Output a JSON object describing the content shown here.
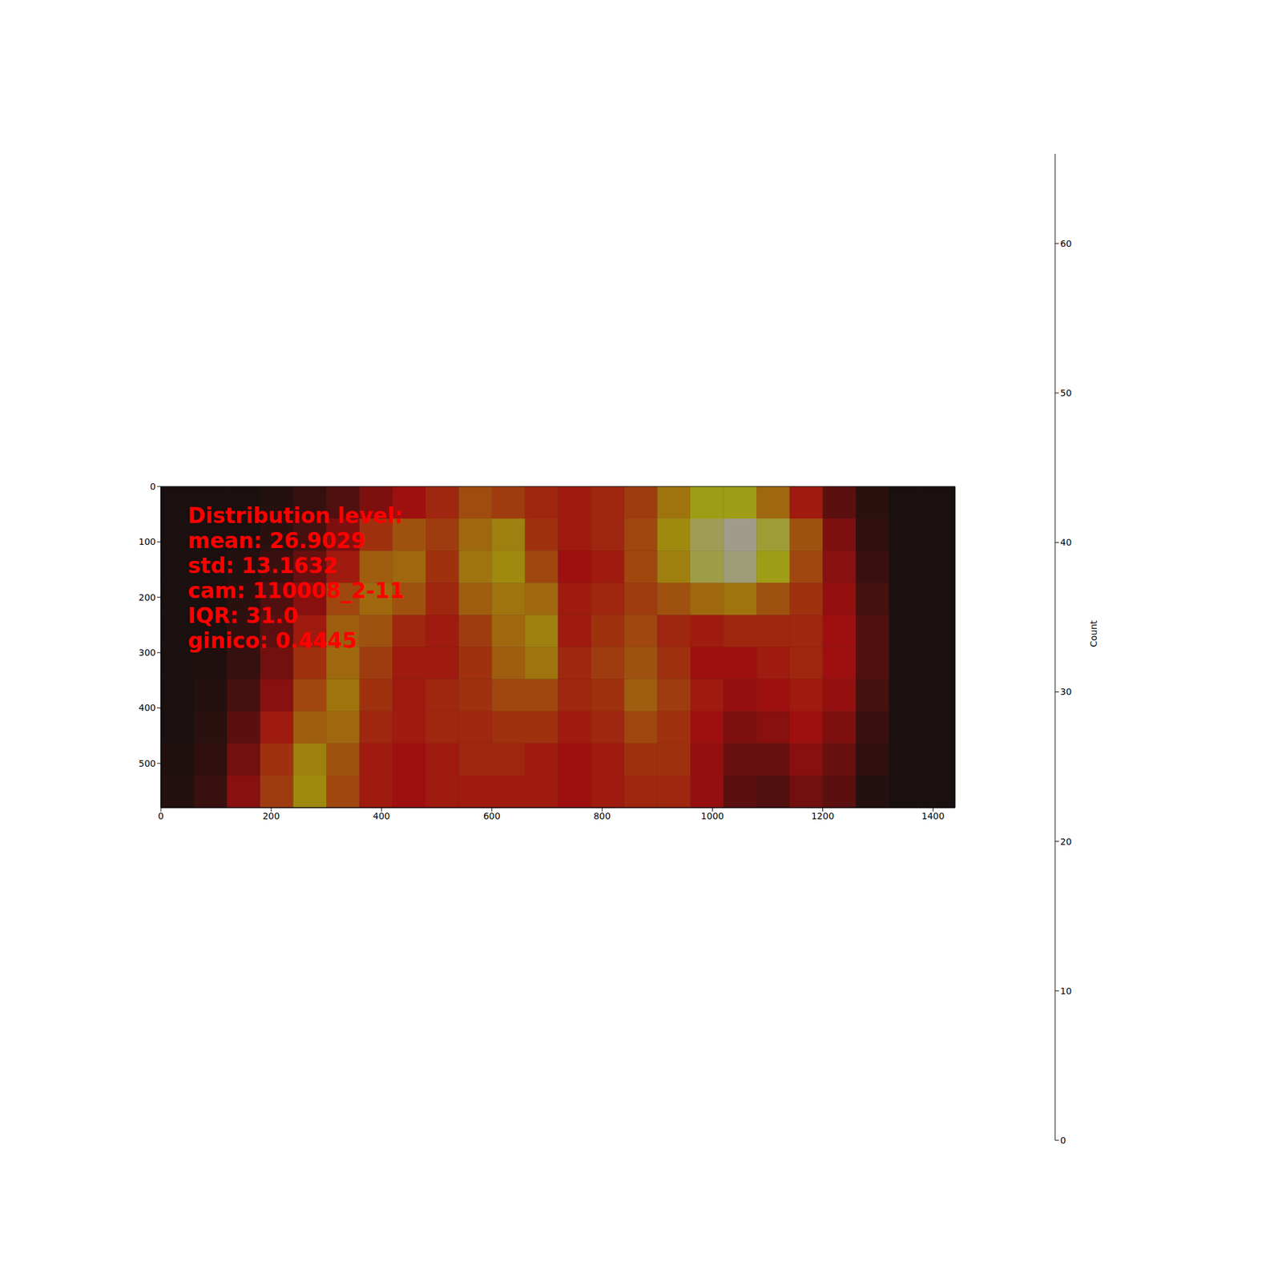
{
  "chart_data": {
    "type": "heatmap",
    "annotations": [
      "Distribution level:",
      "mean: 26.9029",
      "std: 13.1632",
      "cam: 110008_2-11",
      "IQR: 31.0",
      "ginico: 0.4445"
    ],
    "xlim": [
      0,
      1440
    ],
    "ylim": [
      580,
      0
    ],
    "xticks": [
      0,
      200,
      400,
      600,
      800,
      1000,
      1200,
      1400
    ],
    "yticks": [
      0,
      100,
      200,
      300,
      400,
      500
    ],
    "x_edges": [
      0,
      60,
      120,
      180,
      240,
      300,
      360,
      420,
      480,
      540,
      600,
      660,
      720,
      780,
      840,
      900,
      960,
      1020,
      1080,
      1140,
      1200,
      1260,
      1320,
      1380,
      1440
    ],
    "y_edges": [
      0,
      58,
      116,
      174,
      232,
      290,
      348,
      406,
      464,
      522,
      580
    ],
    "cells": [
      [
        0,
        0,
        0,
        2,
        5,
        10,
        18,
        24,
        28,
        35,
        32,
        28,
        26,
        28,
        32,
        42,
        50,
        50,
        40,
        26,
        12,
        3,
        0,
        0
      ],
      [
        0,
        0,
        0,
        3,
        8,
        18,
        30,
        36,
        32,
        40,
        44,
        30,
        26,
        28,
        34,
        46,
        58,
        64,
        54,
        36,
        18,
        4,
        0,
        0
      ],
      [
        0,
        0,
        2,
        6,
        14,
        26,
        38,
        40,
        30,
        42,
        46,
        34,
        24,
        26,
        34,
        44,
        56,
        62,
        50,
        34,
        20,
        6,
        0,
        0
      ],
      [
        0,
        0,
        3,
        10,
        20,
        34,
        40,
        36,
        28,
        38,
        42,
        40,
        26,
        28,
        32,
        36,
        40,
        42,
        36,
        30,
        22,
        8,
        0,
        0
      ],
      [
        0,
        0,
        4,
        12,
        26,
        38,
        36,
        28,
        26,
        32,
        40,
        44,
        26,
        30,
        34,
        28,
        26,
        28,
        28,
        28,
        24,
        10,
        0,
        0
      ],
      [
        0,
        1,
        5,
        16,
        30,
        40,
        32,
        26,
        26,
        30,
        38,
        42,
        28,
        32,
        36,
        30,
        24,
        24,
        26,
        28,
        24,
        10,
        0,
        0
      ],
      [
        0,
        2,
        8,
        20,
        34,
        42,
        30,
        26,
        28,
        30,
        34,
        34,
        28,
        30,
        38,
        32,
        26,
        22,
        24,
        26,
        22,
        8,
        0,
        0
      ],
      [
        0,
        3,
        12,
        26,
        38,
        40,
        28,
        26,
        28,
        28,
        30,
        30,
        26,
        28,
        34,
        30,
        24,
        18,
        20,
        24,
        18,
        6,
        0,
        0
      ],
      [
        1,
        4,
        16,
        30,
        44,
        36,
        26,
        24,
        26,
        28,
        28,
        26,
        24,
        26,
        30,
        30,
        22,
        14,
        14,
        20,
        14,
        4,
        0,
        0
      ],
      [
        2,
        6,
        20,
        32,
        46,
        34,
        26,
        24,
        26,
        26,
        26,
        26,
        24,
        26,
        28,
        28,
        22,
        12,
        10,
        16,
        12,
        2,
        0,
        0
      ]
    ],
    "colorbar": {
      "range": [
        0,
        66
      ],
      "ticks": [
        0,
        10,
        20,
        30,
        40,
        50,
        60
      ],
      "label": "Count"
    }
  }
}
